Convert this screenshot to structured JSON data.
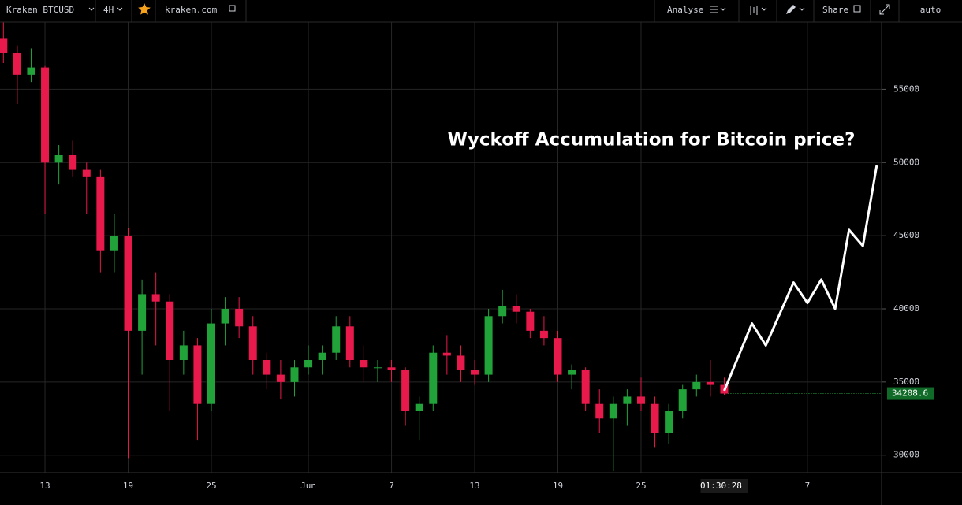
{
  "toolbar": {
    "symbol": "Kraken BTCUSD",
    "interval": "4H",
    "site": "kraken.com",
    "analyse": "Analyse",
    "share": "Share",
    "scale": "auto"
  },
  "countdown": "01:30:28",
  "chart_data": {
    "type": "candlestick",
    "title": "Wyckoff Accumulation for Bitcoin price?",
    "up_color": "#22a33a",
    "down_color": "#e8194b",
    "grid": true,
    "ylim": [
      28800,
      59600
    ],
    "yticks": [
      30000,
      35000,
      40000,
      45000,
      50000,
      55000
    ],
    "categories": [
      null,
      null,
      null,
      "13",
      null,
      null,
      null,
      null,
      null,
      "19",
      null,
      null,
      null,
      null,
      null,
      "25",
      null,
      null,
      null,
      null,
      null,
      null,
      "Jun",
      null,
      null,
      null,
      null,
      null,
      "7",
      null,
      null,
      null,
      null,
      null,
      "13",
      null,
      null,
      null,
      null,
      null,
      "19",
      null,
      null,
      null,
      null,
      null,
      "25",
      null,
      null,
      null,
      null,
      null,
      null,
      null,
      null,
      null,
      null,
      null,
      "7",
      null,
      null,
      null,
      null,
      null
    ],
    "open": [
      58500,
      57500,
      56000,
      56500,
      50000,
      50500,
      49500,
      49000,
      44000,
      45000,
      38500,
      41000,
      40500,
      36500,
      37500,
      33500,
      39000,
      40000,
      38800,
      36500,
      35500,
      35000,
      36000,
      36500,
      37000,
      38800,
      36500,
      36000,
      36000,
      35800,
      33000,
      33500,
      37000,
      36800,
      35800,
      35500,
      39500,
      40200,
      39800,
      38500,
      38000,
      35500,
      35800,
      33500,
      32500,
      33500,
      34000,
      33500,
      31500,
      33000,
      34500,
      35000,
      34800,
      null,
      null,
      null,
      null,
      null,
      null,
      null,
      null,
      null,
      null,
      null
    ],
    "high": [
      59600,
      58000,
      57800,
      56600,
      51200,
      51500,
      50000,
      49500,
      46500,
      45500,
      42000,
      42500,
      41000,
      38500,
      38000,
      40000,
      40800,
      40800,
      39500,
      37000,
      36500,
      36500,
      37500,
      37500,
      39500,
      39500,
      37500,
      36500,
      36500,
      36000,
      34000,
      37500,
      38200,
      37500,
      36500,
      40000,
      41300,
      41000,
      40000,
      39500,
      38500,
      36200,
      36000,
      34500,
      34000,
      34500,
      35300,
      34000,
      33500,
      34800,
      35500,
      36500,
      35300,
      null,
      null,
      null,
      null,
      null,
      null,
      null,
      null,
      null,
      null,
      null
    ],
    "low": [
      56800,
      54000,
      55500,
      46500,
      48500,
      49000,
      46500,
      42500,
      42500,
      29800,
      35500,
      37500,
      33000,
      35500,
      31000,
      33000,
      37500,
      38000,
      35500,
      34500,
      33800,
      34000,
      35500,
      35500,
      36500,
      36000,
      35000,
      35000,
      35000,
      32000,
      31000,
      33000,
      35500,
      35000,
      34800,
      35000,
      39000,
      39000,
      38000,
      37500,
      35000,
      34500,
      33000,
      31500,
      28900,
      32000,
      33000,
      30500,
      30800,
      32500,
      34000,
      34000,
      34100,
      null,
      null,
      null,
      null,
      null,
      null,
      null,
      null,
      null,
      null,
      null
    ],
    "close": [
      57500,
      56000,
      56500,
      50000,
      50500,
      49500,
      49000,
      44000,
      45000,
      38500,
      41000,
      40500,
      36500,
      37500,
      33500,
      39000,
      40000,
      38800,
      36500,
      35500,
      35000,
      36000,
      36500,
      37000,
      38800,
      36500,
      36000,
      36000,
      35800,
      33000,
      33500,
      37000,
      36800,
      35800,
      35500,
      39500,
      40200,
      39800,
      38500,
      38000,
      35500,
      35800,
      33500,
      32500,
      33500,
      34000,
      33500,
      31500,
      33000,
      34500,
      35000,
      34800,
      34208.6,
      null,
      null,
      null,
      null,
      null,
      null,
      null,
      null,
      null,
      null,
      null
    ],
    "overlay": {
      "type": "line",
      "color": "#ffffff",
      "values": [
        null,
        null,
        null,
        null,
        null,
        null,
        null,
        null,
        null,
        null,
        null,
        null,
        null,
        null,
        null,
        null,
        null,
        null,
        null,
        null,
        null,
        null,
        null,
        null,
        null,
        null,
        null,
        null,
        null,
        null,
        null,
        null,
        null,
        null,
        null,
        null,
        null,
        null,
        null,
        null,
        null,
        null,
        null,
        null,
        null,
        null,
        null,
        null,
        null,
        null,
        null,
        null,
        34400,
        36700,
        39000,
        37500,
        39650,
        41800,
        40400,
        42000,
        40000,
        45400,
        44300,
        49800
      ]
    }
  }
}
